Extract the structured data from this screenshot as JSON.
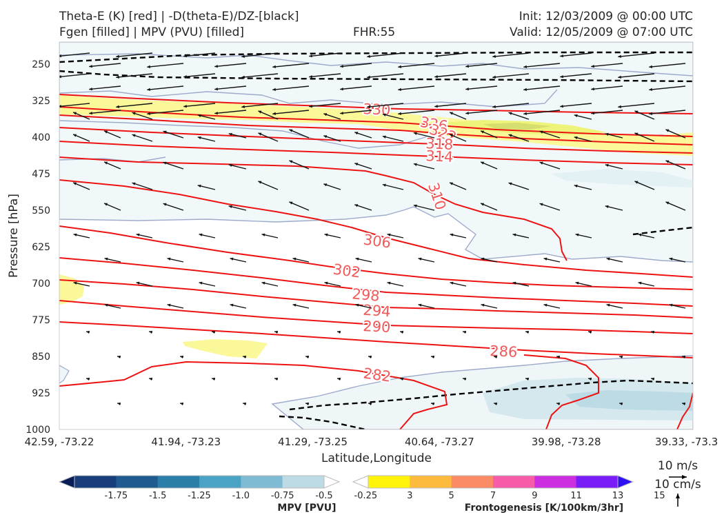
{
  "header": {
    "line1_left": "Theta-E (K) [red] | -D(theta-E)/DZ-[black]",
    "line2_left": "Fgen [filled] | MPV (PVU) [filled]",
    "fhr": "FHR:55",
    "init": "Init: 12/03/2009 @ 00:00 UTC",
    "valid": "Valid: 12/05/2009 @ 07:00 UTC"
  },
  "chart_data": {
    "type": "cross-section",
    "xlabel": "Latitude,Longitude",
    "ylabel": "Pressure [hPa]",
    "x_ticks": [
      "42.59, -73.22",
      "41.94, -73.23",
      "41.29, -73.25",
      "40.64, -73.27",
      "39.98, -73.28",
      "39.33, -73.3"
    ],
    "y_ticks": [
      250,
      325,
      400,
      475,
      550,
      625,
      700,
      775,
      850,
      925,
      1000
    ],
    "ylim": [
      1000,
      200
    ],
    "theta_e_contour_labels": [
      330,
      326,
      322,
      318,
      314,
      310,
      306,
      302,
      298,
      294,
      290,
      286,
      282
    ],
    "colors": {
      "theta_e": "#ee1111",
      "theta_e_label": "#f05a5a",
      "dthetae_dz": "#000000",
      "mpv_outline": "#9eaacb"
    },
    "mpv_colorbar": {
      "title": "MPV [PVU]",
      "tick_labels": [
        "-1.75",
        "-1.5",
        "-1.25",
        "-1.0",
        "-0.75",
        "-0.5",
        "-0.25"
      ],
      "colors": [
        "#081d58",
        "#173e7a",
        "#1f5b8e",
        "#2a7ea8",
        "#4aa3c4",
        "#7fbcd3",
        "#bcdbe5",
        "#ffffff"
      ]
    },
    "fgen_colorbar": {
      "title": "Frontogenesis [K/100km/3hr]",
      "tick_labels": [
        "3",
        "5",
        "7",
        "9",
        "11",
        "13",
        "15"
      ],
      "colors": [
        "#ffffff",
        "#fff30a",
        "#fdbb3e",
        "#fb8a66",
        "#f65ca8",
        "#cc2fe0",
        "#7a1cf7",
        "#2e10f5"
      ]
    },
    "wind_legend": {
      "horizontal": "10 m/s",
      "vertical": "10 cm/s"
    }
  }
}
